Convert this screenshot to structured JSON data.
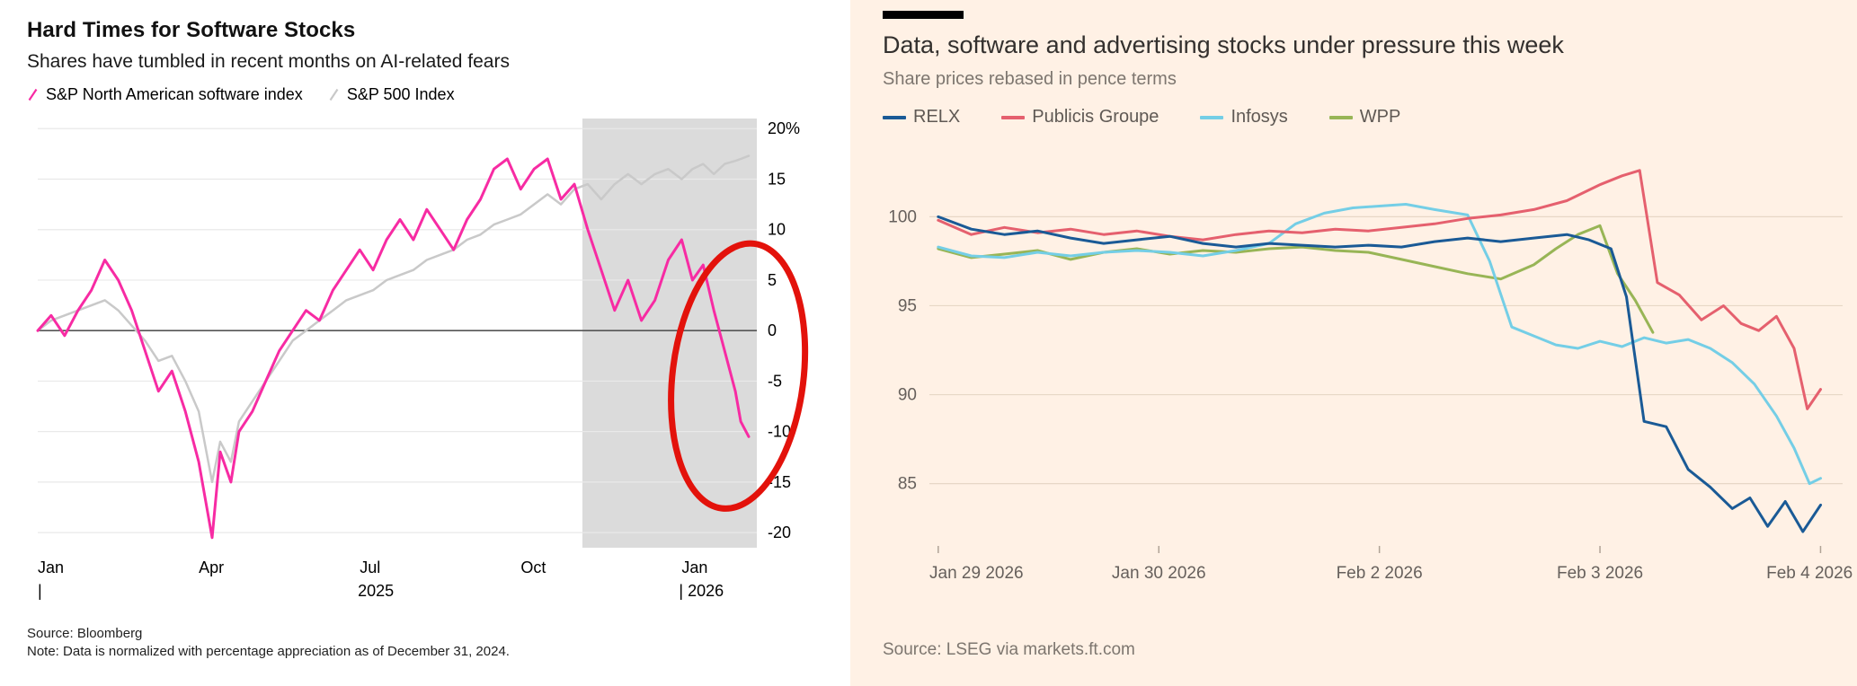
{
  "chart_data": [
    {
      "type": "line",
      "title": "Hard Times for Software Stocks",
      "subtitle": "Shares have tumbled in recent months on AI-related fears",
      "source": "Source: Bloomberg",
      "note": "Note: Data is normalized with percentage appreciation as of December 31, 2024.",
      "xlabel": "",
      "ylabel": "%",
      "xlim": [
        0,
        13.4
      ],
      "ylim": [
        -21.5,
        21
      ],
      "grid_on": true,
      "grid_color": "#E9E9E9",
      "zero_line_color": "#555555",
      "text_color": "#000000",
      "ylabel_side": "right",
      "xtick_anchor": "start",
      "yticks": [
        {
          "v": 20,
          "label": "20%"
        },
        {
          "v": 15,
          "label": "15"
        },
        {
          "v": 10,
          "label": "10"
        },
        {
          "v": 5,
          "label": "5"
        },
        {
          "v": 0,
          "label": "0"
        },
        {
          "v": -5,
          "label": "-5"
        },
        {
          "v": -10,
          "label": "-10"
        },
        {
          "v": -15,
          "label": "-15"
        },
        {
          "v": -20,
          "label": "-20"
        }
      ],
      "xticks": [
        {
          "v": 0,
          "label": "Jan"
        },
        {
          "v": 3,
          "label": "Apr"
        },
        {
          "v": 6,
          "label": "Jul"
        },
        {
          "v": 9,
          "label": "Oct"
        },
        {
          "v": 12,
          "label": "Jan"
        }
      ],
      "year_labels": [
        {
          "v": 0,
          "label": "|"
        },
        {
          "v": 6.3,
          "label": "2025",
          "anchor": "middle"
        },
        {
          "v": 11.95,
          "label": "| 2026"
        }
      ],
      "shaded_region": {
        "from": 10.15,
        "to": 13.4,
        "color": "#DBDBDB"
      },
      "annotation": {
        "shape": "ellipse",
        "cx": 13.05,
        "cy": -4.5,
        "rx": 1.22,
        "ry": 13.2,
        "rotate": 7,
        "color": "#E3120B",
        "stroke_width": 7
      },
      "series": [
        {
          "name": "S&P North American software index",
          "color": "#F72BA3",
          "width": 3,
          "x": [
            0,
            0.25,
            0.5,
            0.75,
            1,
            1.25,
            1.5,
            1.75,
            2,
            2.25,
            2.5,
            2.75,
            3,
            3.25,
            3.4,
            3.6,
            3.75,
            4,
            4.25,
            4.5,
            4.75,
            5,
            5.25,
            5.5,
            5.75,
            6,
            6.25,
            6.5,
            6.75,
            7,
            7.25,
            7.5,
            7.75,
            8,
            8.25,
            8.5,
            8.75,
            9,
            9.25,
            9.5,
            9.75,
            10,
            10.25,
            10.5,
            10.75,
            11,
            11.25,
            11.5,
            11.75,
            12,
            12.2,
            12.4,
            12.6,
            12.8,
            13,
            13.1,
            13.25
          ],
          "y": [
            0,
            1.5,
            -0.5,
            2,
            4,
            7,
            5,
            2,
            -2,
            -6,
            -4,
            -8,
            -13,
            -20.5,
            -12,
            -15,
            -10,
            -8,
            -5,
            -2,
            0,
            2,
            1,
            4,
            6,
            8,
            6,
            9,
            11,
            9,
            12,
            10,
            8,
            11,
            13,
            16,
            17,
            14,
            16,
            17,
            13,
            14.5,
            10,
            6,
            2,
            5,
            1,
            3,
            7,
            9,
            5,
            6.5,
            2,
            -2,
            -6,
            -9,
            -10.5
          ]
        },
        {
          "name": "S&P 500 Index",
          "color": "#C9C9C9",
          "width": 2.5,
          "x": [
            0,
            0.25,
            0.5,
            0.75,
            1,
            1.25,
            1.5,
            1.75,
            2,
            2.25,
            2.5,
            2.75,
            3,
            3.25,
            3.4,
            3.6,
            3.75,
            4,
            4.25,
            4.5,
            4.75,
            5,
            5.25,
            5.5,
            5.75,
            6,
            6.25,
            6.5,
            6.75,
            7,
            7.25,
            7.5,
            7.75,
            8,
            8.25,
            8.5,
            8.75,
            9,
            9.25,
            9.5,
            9.75,
            10,
            10.25,
            10.5,
            10.75,
            11,
            11.25,
            11.5,
            11.75,
            12,
            12.2,
            12.4,
            12.6,
            12.8,
            13,
            13.1,
            13.25
          ],
          "y": [
            0,
            1,
            1.5,
            2,
            2.5,
            3,
            2,
            0.5,
            -1,
            -3,
            -2.5,
            -5,
            -8,
            -15,
            -11,
            -13,
            -9,
            -7,
            -5,
            -3,
            -1,
            0,
            1,
            2,
            3,
            3.5,
            4,
            5,
            5.5,
            6,
            7,
            7.5,
            8,
            9,
            9.5,
            10.5,
            11,
            11.5,
            12.5,
            13.5,
            12.5,
            14,
            14.5,
            13,
            14.5,
            15.5,
            14.5,
            15.5,
            16,
            15,
            16,
            16.5,
            15.5,
            16.5,
            16.8,
            17,
            17.3
          ]
        }
      ]
    },
    {
      "type": "line",
      "title": "Data, software and advertising stocks under pressure this week",
      "subtitle": "Share prices rebased in pence terms",
      "source": "Source: LSEG via markets.ft.com",
      "background": "#FFF1E5",
      "xlim": [
        -0.04,
        4.1
      ],
      "ylim": [
        81.5,
        103.5
      ],
      "grid_on": true,
      "grid_color": "#E7D7C6",
      "tick_color": "#B0A396",
      "text_color": "#66605C",
      "ylabel_side": "left",
      "tick_marks": true,
      "yticks": [
        {
          "v": 100,
          "label": "100"
        },
        {
          "v": 95,
          "label": "95"
        },
        {
          "v": 90,
          "label": "90"
        },
        {
          "v": 85,
          "label": "85"
        }
      ],
      "xticks": [
        {
          "v": 0,
          "label": "Jan 29 2026",
          "anchor": "start",
          "lv": -0.04
        },
        {
          "v": 1,
          "label": "Jan 30 2026"
        },
        {
          "v": 2,
          "label": "Feb 2 2026"
        },
        {
          "v": 3,
          "label": "Feb 3 2026"
        },
        {
          "v": 4,
          "label": "Feb 4 2026",
          "lv": 3.95
        }
      ],
      "series": [
        {
          "name": "RELX",
          "color": "#1A5A96",
          "width": 3,
          "x": [
            0,
            0.15,
            0.3,
            0.45,
            0.6,
            0.75,
            0.9,
            1.05,
            1.2,
            1.35,
            1.5,
            1.65,
            1.8,
            1.95,
            2.1,
            2.25,
            2.4,
            2.55,
            2.7,
            2.85,
            2.95,
            3.05,
            3.12,
            3.2,
            3.3,
            3.4,
            3.5,
            3.6,
            3.68,
            3.76,
            3.84,
            3.92,
            4.0
          ],
          "y": [
            100,
            99.3,
            99.0,
            99.2,
            98.8,
            98.5,
            98.7,
            98.9,
            98.5,
            98.3,
            98.5,
            98.4,
            98.3,
            98.4,
            98.3,
            98.6,
            98.8,
            98.6,
            98.8,
            99.0,
            98.7,
            98.2,
            95.5,
            88.5,
            88.2,
            85.8,
            84.8,
            83.6,
            84.2,
            82.6,
            84.0,
            82.3,
            83.8
          ]
        },
        {
          "name": "Publicis Groupe",
          "color": "#E5606E",
          "width": 3,
          "x": [
            0,
            0.15,
            0.3,
            0.45,
            0.6,
            0.75,
            0.9,
            1.05,
            1.2,
            1.35,
            1.5,
            1.65,
            1.8,
            1.95,
            2.1,
            2.25,
            2.4,
            2.55,
            2.7,
            2.85,
            3.0,
            3.1,
            3.18,
            3.26,
            3.36,
            3.46,
            3.56,
            3.64,
            3.72,
            3.8,
            3.88,
            3.94,
            4.0
          ],
          "y": [
            99.8,
            99.0,
            99.4,
            99.1,
            99.3,
            99.0,
            99.2,
            98.9,
            98.7,
            99.0,
            99.2,
            99.1,
            99.3,
            99.2,
            99.4,
            99.6,
            99.9,
            100.1,
            100.4,
            100.9,
            101.8,
            102.3,
            102.6,
            96.3,
            95.6,
            94.2,
            95.0,
            94.0,
            93.6,
            94.4,
            92.6,
            89.2,
            90.3
          ]
        },
        {
          "name": "Infosys",
          "color": "#74CEE6",
          "width": 3,
          "x": [
            0,
            0.15,
            0.3,
            0.45,
            0.6,
            0.75,
            0.9,
            1.05,
            1.2,
            1.35,
            1.5,
            1.62,
            1.75,
            1.88,
            2.0,
            2.12,
            2.25,
            2.4,
            2.5,
            2.6,
            2.7,
            2.8,
            2.9,
            3.0,
            3.1,
            3.2,
            3.3,
            3.4,
            3.5,
            3.6,
            3.7,
            3.8,
            3.88,
            3.95,
            4.0
          ],
          "y": [
            98.3,
            97.8,
            97.7,
            98.0,
            97.8,
            98.0,
            98.1,
            98.0,
            97.8,
            98.1,
            98.5,
            99.6,
            100.2,
            100.5,
            100.6,
            100.7,
            100.4,
            100.1,
            97.5,
            93.8,
            93.3,
            92.8,
            92.6,
            93.0,
            92.7,
            93.2,
            92.9,
            93.1,
            92.6,
            91.8,
            90.6,
            88.8,
            87.0,
            85.0,
            85.3
          ]
        },
        {
          "name": "WPP",
          "color": "#98B556",
          "width": 3,
          "x": [
            0,
            0.15,
            0.3,
            0.45,
            0.6,
            0.75,
            0.9,
            1.05,
            1.2,
            1.35,
            1.5,
            1.65,
            1.8,
            1.95,
            2.1,
            2.25,
            2.4,
            2.55,
            2.7,
            2.8,
            2.9,
            3.0,
            3.08,
            3.16,
            3.24
          ],
          "y": [
            98.2,
            97.7,
            97.9,
            98.1,
            97.6,
            98.0,
            98.2,
            97.9,
            98.1,
            98.0,
            98.2,
            98.3,
            98.1,
            98.0,
            97.6,
            97.2,
            96.8,
            96.5,
            97.3,
            98.2,
            99.0,
            99.5,
            96.8,
            95.3,
            93.5
          ]
        }
      ]
    }
  ]
}
